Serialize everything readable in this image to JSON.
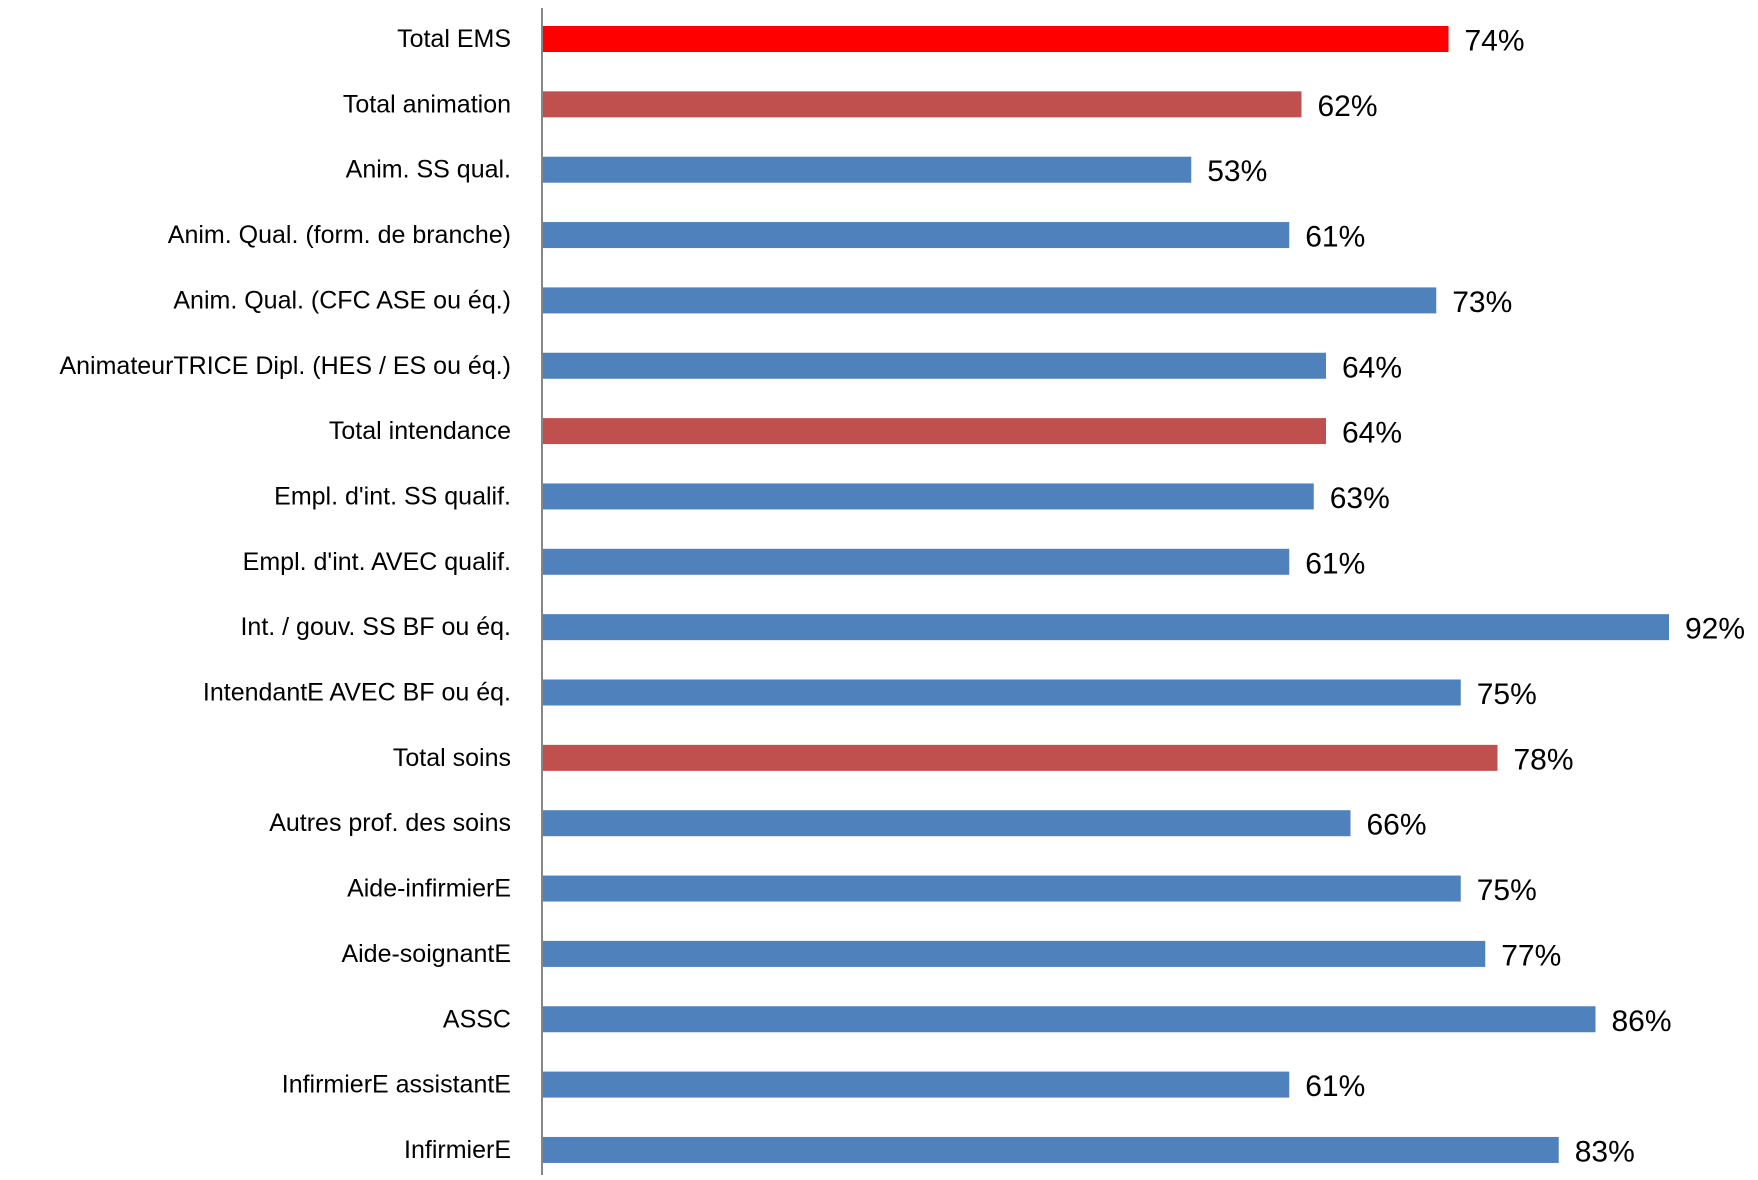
{
  "chart_data": {
    "type": "bar",
    "orientation": "horizontal",
    "title": "",
    "xlabel": "",
    "ylabel": "",
    "xlim": [
      0,
      100
    ],
    "grid": false,
    "legend": "none",
    "value_suffix": "%",
    "colors": {
      "highlight": "#FF0000",
      "subtotal": "#C0504D",
      "default": "#4F81BD",
      "axis": "#868686",
      "text": "#000000"
    },
    "categories": [
      "Total EMS",
      "Total animation",
      "Anim. SS qual.",
      "Anim. Qual. (form. de branche)",
      "Anim. Qual. (CFC ASE ou éq.)",
      "AnimateurTRICE Dipl. (HES / ES ou éq.)",
      "Total intendance",
      "Empl. d'int. SS qualif.",
      "Empl. d'int. AVEC qualif.",
      "Int. / gouv. SS BF ou éq.",
      "IntendantE AVEC BF ou éq.",
      "Total soins",
      "Autres prof. des soins",
      "Aide-infirmierE",
      "Aide-soignantE",
      "ASSC",
      "InfirmierE assistantE",
      "InfirmierE"
    ],
    "values": [
      74,
      62,
      53,
      61,
      73,
      64,
      64,
      63,
      61,
      92,
      75,
      78,
      66,
      75,
      77,
      86,
      61,
      83
    ],
    "bar_kind": [
      "highlight",
      "subtotal",
      "default",
      "default",
      "default",
      "default",
      "subtotal",
      "default",
      "default",
      "default",
      "default",
      "subtotal",
      "default",
      "default",
      "default",
      "default",
      "default",
      "default"
    ]
  }
}
